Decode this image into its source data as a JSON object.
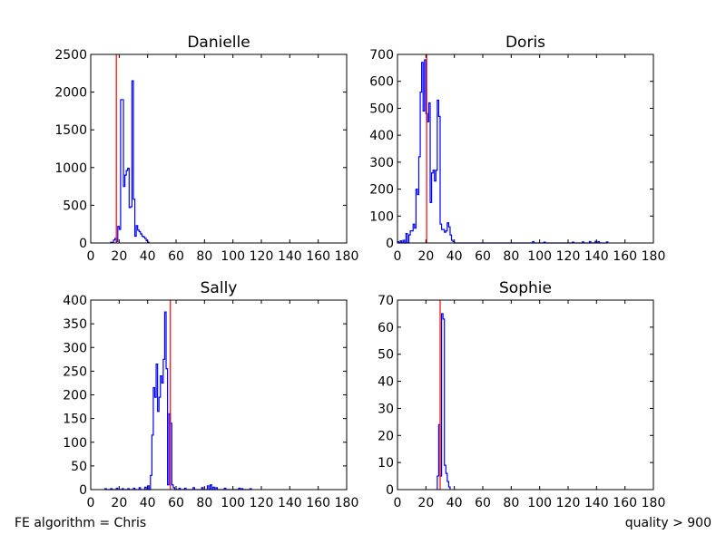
{
  "footer": {
    "left": "FE algorithm = Chris",
    "right": "quality > 900"
  },
  "colors": {
    "histogram": "#0000ff",
    "marker": "#ff0000",
    "axes": "#000000"
  },
  "chart_data": [
    {
      "type": "histogram",
      "title": "Danielle",
      "xlim": [
        0,
        180
      ],
      "ylim": [
        0,
        2500
      ],
      "xticks": [
        0,
        20,
        40,
        60,
        80,
        100,
        120,
        140,
        160,
        180
      ],
      "yticks": [
        0,
        500,
        1000,
        1500,
        2000,
        2500
      ],
      "marker_x": 18,
      "bin_width": 1,
      "bins": [
        [
          14,
          10
        ],
        [
          15,
          5
        ],
        [
          16,
          40
        ],
        [
          17,
          60
        ],
        [
          18,
          20
        ],
        [
          19,
          220
        ],
        [
          20,
          180
        ],
        [
          21,
          1900
        ],
        [
          22,
          1900
        ],
        [
          23,
          750
        ],
        [
          24,
          900
        ],
        [
          25,
          960
        ],
        [
          26,
          990
        ],
        [
          27,
          470
        ],
        [
          28,
          480
        ],
        [
          29,
          2150
        ],
        [
          30,
          580
        ],
        [
          31,
          90
        ],
        [
          32,
          230
        ],
        [
          33,
          170
        ],
        [
          34,
          150
        ],
        [
          35,
          120
        ],
        [
          36,
          90
        ],
        [
          37,
          80
        ],
        [
          38,
          60
        ],
        [
          39,
          30
        ],
        [
          40,
          10
        ]
      ]
    },
    {
      "type": "histogram",
      "title": "Doris",
      "xlim": [
        0,
        180
      ],
      "ylim": [
        0,
        700
      ],
      "xticks": [
        0,
        20,
        40,
        60,
        80,
        100,
        120,
        140,
        160,
        180
      ],
      "yticks": [
        0,
        100,
        200,
        300,
        400,
        500,
        600,
        700
      ],
      "marker_x": 20.5,
      "bin_width": 1,
      "bins": [
        [
          0,
          5
        ],
        [
          2,
          8
        ],
        [
          4,
          10
        ],
        [
          6,
          35
        ],
        [
          8,
          30
        ],
        [
          9,
          45
        ],
        [
          10,
          45
        ],
        [
          11,
          70
        ],
        [
          12,
          55
        ],
        [
          13,
          200
        ],
        [
          14,
          180
        ],
        [
          15,
          320
        ],
        [
          16,
          560
        ],
        [
          17,
          670
        ],
        [
          18,
          490
        ],
        [
          19,
          680
        ],
        [
          20,
          480
        ],
        [
          21,
          450
        ],
        [
          22,
          520
        ],
        [
          23,
          150
        ],
        [
          24,
          260
        ],
        [
          25,
          270
        ],
        [
          26,
          230
        ],
        [
          27,
          270
        ],
        [
          28,
          530
        ],
        [
          29,
          470
        ],
        [
          30,
          70
        ],
        [
          31,
          50
        ],
        [
          32,
          50
        ],
        [
          33,
          40
        ],
        [
          34,
          45
        ],
        [
          35,
          75
        ],
        [
          36,
          60
        ],
        [
          37,
          30
        ],
        [
          38,
          10
        ],
        [
          39,
          5
        ],
        [
          95,
          5
        ],
        [
          103,
          3
        ],
        [
          123,
          3
        ],
        [
          130,
          4
        ],
        [
          135,
          5
        ],
        [
          139,
          6
        ],
        [
          141,
          5
        ],
        [
          147,
          4
        ]
      ]
    },
    {
      "type": "histogram",
      "title": "Sally",
      "xlim": [
        0,
        180
      ],
      "ylim": [
        0,
        400
      ],
      "xticks": [
        0,
        20,
        40,
        60,
        80,
        100,
        120,
        140,
        160,
        180
      ],
      "yticks": [
        0,
        50,
        100,
        150,
        200,
        250,
        300,
        350,
        400
      ],
      "marker_x": 56,
      "bin_width": 1,
      "bins": [
        [
          10,
          2
        ],
        [
          14,
          2
        ],
        [
          18,
          3
        ],
        [
          22,
          2
        ],
        [
          26,
          2
        ],
        [
          30,
          3
        ],
        [
          34,
          4
        ],
        [
          38,
          5
        ],
        [
          40,
          8
        ],
        [
          42,
          30
        ],
        [
          43,
          115
        ],
        [
          44,
          215
        ],
        [
          45,
          195
        ],
        [
          46,
          265
        ],
        [
          47,
          165
        ],
        [
          48,
          195
        ],
        [
          49,
          240
        ],
        [
          50,
          225
        ],
        [
          51,
          275
        ],
        [
          52,
          375
        ],
        [
          53,
          255
        ],
        [
          54,
          10
        ],
        [
          55,
          160
        ],
        [
          56,
          140
        ],
        [
          57,
          10
        ],
        [
          58,
          4
        ],
        [
          62,
          3
        ],
        [
          66,
          3
        ],
        [
          72,
          4
        ],
        [
          78,
          4
        ],
        [
          82,
          8
        ],
        [
          84,
          10
        ],
        [
          86,
          5
        ],
        [
          88,
          4
        ],
        [
          94,
          3
        ],
        [
          104,
          3
        ],
        [
          106,
          2
        ],
        [
          112,
          2
        ]
      ]
    },
    {
      "type": "histogram",
      "title": "Sophie",
      "xlim": [
        0,
        180
      ],
      "ylim": [
        0,
        70
      ],
      "xticks": [
        0,
        20,
        40,
        60,
        80,
        100,
        120,
        140,
        160,
        180
      ],
      "yticks": [
        0,
        10,
        20,
        30,
        40,
        50,
        60,
        70
      ],
      "marker_x": 30,
      "bin_width": 1,
      "bins": [
        [
          28,
          5
        ],
        [
          29,
          24
        ],
        [
          30,
          5
        ],
        [
          31,
          65
        ],
        [
          32,
          63
        ],
        [
          33,
          9
        ],
        [
          34,
          6
        ],
        [
          35,
          3
        ],
        [
          36,
          1
        ]
      ]
    }
  ]
}
